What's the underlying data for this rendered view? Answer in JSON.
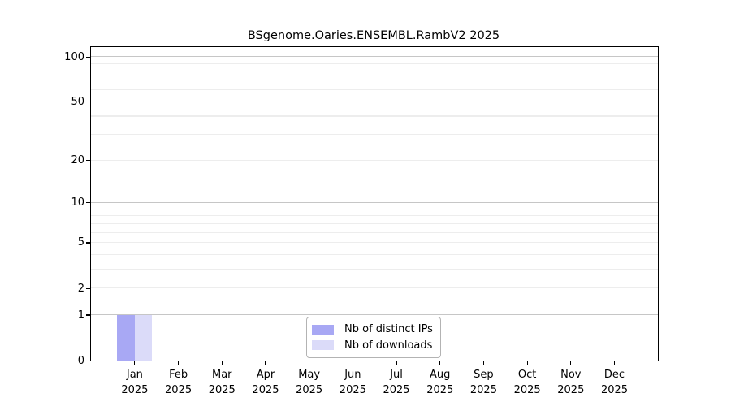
{
  "chart_data": {
    "type": "bar",
    "title": "BSgenome.Oaries.ENSEMBL.RambV2 2025",
    "xlabel": "",
    "ylabel": "",
    "categories": [
      "Jan 2025",
      "Feb 2025",
      "Mar 2025",
      "Apr 2025",
      "May 2025",
      "Jun 2025",
      "Jul 2025",
      "Aug 2025",
      "Sep 2025",
      "Oct 2025",
      "Nov 2025",
      "Dec 2025"
    ],
    "series": [
      {
        "name": "Nb of distinct IPs",
        "color": "#a8a8f4",
        "values": [
          1,
          0,
          0,
          0,
          0,
          0,
          0,
          0,
          0,
          0,
          0,
          0
        ]
      },
      {
        "name": "Nb of downloads",
        "color": "#dbdbf9",
        "values": [
          1,
          0,
          0,
          0,
          0,
          0,
          0,
          0,
          0,
          0,
          0,
          0
        ]
      }
    ],
    "yscale": "log1p",
    "ylim": [
      0,
      116
    ],
    "yticks": [
      0,
      1,
      2,
      5,
      10,
      20,
      50,
      100
    ],
    "gridlines_major": [
      1,
      10,
      100
    ],
    "gridlines_minor": [
      2,
      3,
      4,
      5,
      6,
      7,
      8,
      9,
      20,
      30,
      40,
      50,
      60,
      70,
      80,
      90
    ],
    "grid": true,
    "legend_position": "lower-center"
  },
  "colors": {
    "major_grid": "#c6c6c6",
    "minor_grid": "#ededed",
    "axis": "#000000",
    "legend_border": "#b3b3b3",
    "text": "#000000"
  }
}
